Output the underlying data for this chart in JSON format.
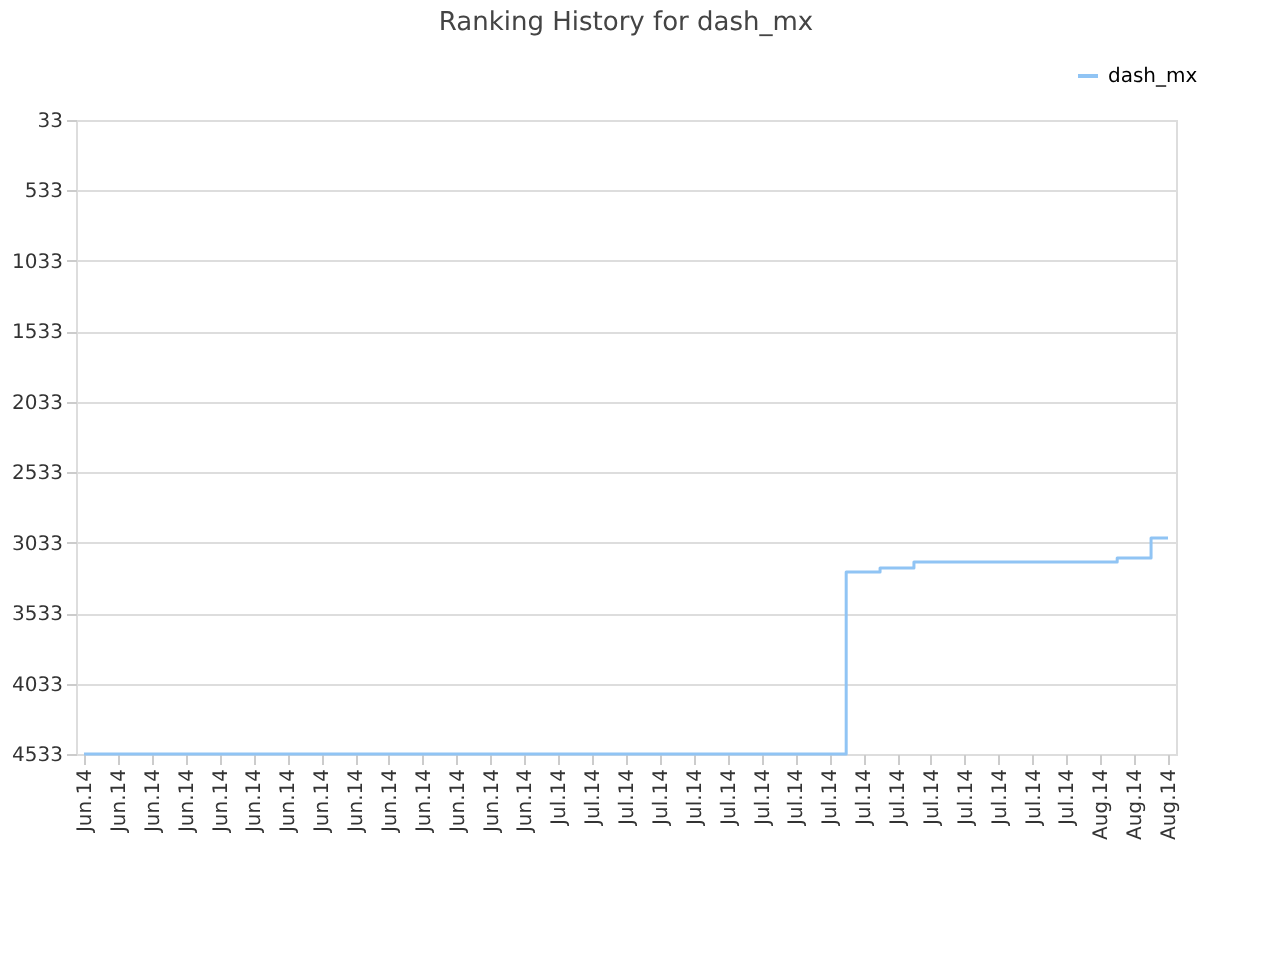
{
  "chart_data": {
    "type": "step",
    "title": "Ranking History for dash_mx",
    "categories": [
      "Jun.14",
      "Jun.14",
      "Jun.14",
      "Jun.14",
      "Jun.14",
      "Jun.14",
      "Jun.14",
      "Jun.14",
      "Jun.14",
      "Jun.14",
      "Jun.14",
      "Jun.14",
      "Jun.14",
      "Jun.14",
      "Jul.14",
      "Jul.14",
      "Jul.14",
      "Jul.14",
      "Jul.14",
      "Jul.14",
      "Jul.14",
      "Jul.14",
      "Jul.14",
      "Jul.14",
      "Jul.14",
      "Jul.14",
      "Jul.14",
      "Jul.14",
      "Jul.14",
      "Jul.14",
      "Aug.14",
      "Aug.14",
      "Aug.14"
    ],
    "series": [
      {
        "name": "dash_mx",
        "color": "#90c4f4",
        "values": [
          4533,
          4533,
          4533,
          4533,
          4533,
          4533,
          4533,
          4533,
          4533,
          4533,
          4533,
          4533,
          4533,
          4533,
          4533,
          4533,
          4533,
          4533,
          4533,
          4533,
          4533,
          4533,
          4533,
          3241,
          3213,
          3170,
          3170,
          3170,
          3170,
          3170,
          3170,
          3142,
          3000
        ]
      }
    ],
    "ylim": [
      4533,
      33
    ],
    "yticks": [
      33,
      533,
      1033,
      1533,
      2033,
      2533,
      3033,
      3533,
      4033,
      4533
    ],
    "grid": "y",
    "legend": "top right"
  }
}
